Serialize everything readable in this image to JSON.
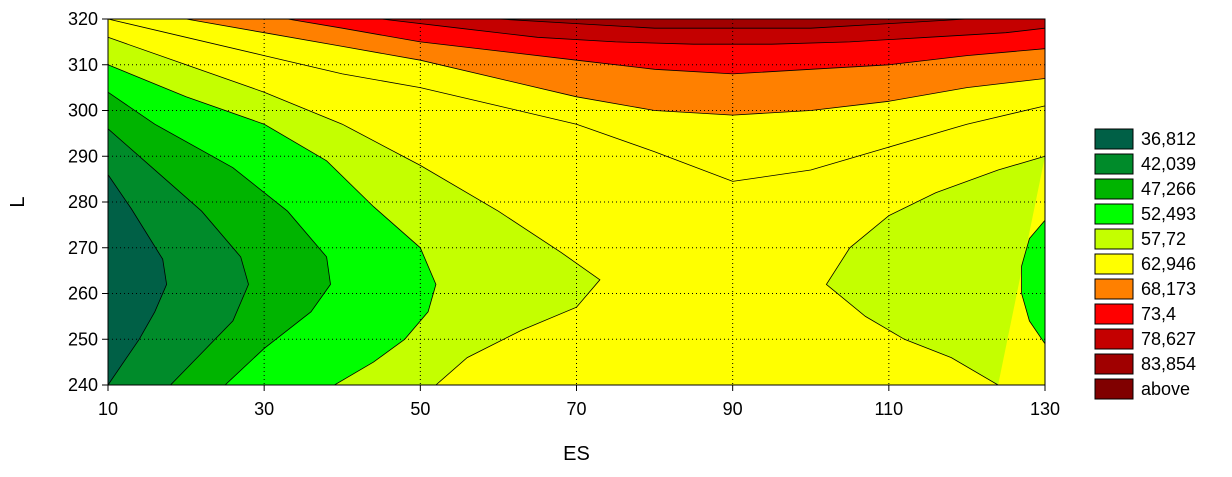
{
  "chart_data": {
    "type": "heatmap",
    "subtype": "contour",
    "xlabel": "ES",
    "ylabel": "L",
    "xlim": [
      10,
      130
    ],
    "ylim": [
      240,
      320
    ],
    "xticks": [
      "10",
      "30",
      "50",
      "70",
      "90",
      "110",
      "130"
    ],
    "yticks": [
      "240",
      "250",
      "260",
      "270",
      "280",
      "290",
      "300",
      "310",
      "320"
    ],
    "grid": true,
    "legend_position": "right",
    "levels": [
      {
        "label": "36,812",
        "value": 36.812,
        "color": "#006046"
      },
      {
        "label": "42,039",
        "value": 42.039,
        "color": "#008b2a"
      },
      {
        "label": "47,266",
        "value": 47.266,
        "color": "#00b400"
      },
      {
        "label": "52,493",
        "value": 52.493,
        "color": "#00ff00"
      },
      {
        "label": "57,72",
        "value": 57.72,
        "color": "#c4ff00"
      },
      {
        "label": "62,946",
        "value": 62.946,
        "color": "#ffff00"
      },
      {
        "label": "68,173",
        "value": 68.173,
        "color": "#ff8000"
      },
      {
        "label": "73,4",
        "value": 73.4,
        "color": "#ff0000"
      },
      {
        "label": "78,627",
        "value": 78.627,
        "color": "#c40000"
      },
      {
        "label": "83,854",
        "value": 83.854,
        "color": "#a00000"
      },
      {
        "label": "above",
        "value": null,
        "color": "#800000"
      }
    ],
    "contours": [
      {
        "level": "36,812",
        "color": "#006046",
        "points": [
          [
            10,
            286
          ],
          [
            13,
            278.5
          ],
          [
            17,
            267.5
          ],
          [
            17.5,
            262
          ],
          [
            16,
            256
          ],
          [
            14,
            250
          ],
          [
            10,
            240
          ]
        ]
      },
      {
        "level": "42,039",
        "color": "#008b2a",
        "points": [
          [
            10,
            296
          ],
          [
            15,
            288.5
          ],
          [
            22,
            278
          ],
          [
            27,
            268
          ],
          [
            28,
            262
          ],
          [
            26,
            254
          ],
          [
            22,
            247
          ],
          [
            18,
            240
          ]
        ]
      },
      {
        "level": "47,266",
        "color": "#00b400",
        "points": [
          [
            10,
            304
          ],
          [
            16,
            297
          ],
          [
            26,
            287.5
          ],
          [
            33,
            278
          ],
          [
            38,
            268
          ],
          [
            38.5,
            262
          ],
          [
            36,
            256
          ],
          [
            30,
            248
          ],
          [
            25,
            240
          ]
        ]
      },
      {
        "level": "52,493",
        "color": "#00ff00",
        "points": [
          [
            10,
            310
          ],
          [
            20,
            303
          ],
          [
            30,
            297
          ],
          [
            38,
            289
          ],
          [
            44,
            279
          ],
          [
            50,
            270
          ],
          [
            52,
            262
          ],
          [
            51,
            256
          ],
          [
            48,
            250
          ],
          [
            44,
            245
          ],
          [
            39,
            240
          ]
        ]
      },
      {
        "level": "57,72",
        "color": "#c4ff00",
        "points": [
          [
            10,
            316
          ],
          [
            20,
            310
          ],
          [
            30,
            304
          ],
          [
            40,
            297
          ],
          [
            50,
            288
          ],
          [
            60,
            278
          ],
          [
            68,
            269
          ],
          [
            73,
            263
          ],
          [
            70,
            257
          ],
          [
            63,
            252
          ],
          [
            56,
            246
          ],
          [
            52,
            240
          ]
        ]
      },
      {
        "level": "57,72",
        "color": "#c4ff00",
        "points": [
          [
            130,
            290
          ],
          [
            124,
            287
          ],
          [
            116,
            282
          ],
          [
            110,
            277
          ],
          [
            105,
            270
          ],
          [
            102,
            262
          ],
          [
            107,
            255
          ],
          [
            112,
            250
          ],
          [
            118,
            246
          ],
          [
            124,
            240
          ]
        ]
      },
      {
        "level": "52,493",
        "color": "#00ff00",
        "points": [
          [
            130,
            276
          ],
          [
            128,
            272
          ],
          [
            127,
            266
          ],
          [
            127,
            260
          ],
          [
            128,
            254
          ],
          [
            130,
            249
          ]
        ]
      },
      {
        "level": "62,946",
        "color": "#ffff00",
        "points": [
          [
            10,
            320
          ],
          [
            20,
            316
          ],
          [
            30,
            312
          ],
          [
            40,
            308
          ],
          [
            50,
            305
          ],
          [
            60,
            301
          ],
          [
            70,
            297
          ],
          [
            80,
            291
          ],
          [
            90,
            284.5
          ],
          [
            100,
            287
          ],
          [
            110,
            292
          ],
          [
            120,
            297
          ],
          [
            130,
            301
          ]
        ]
      },
      {
        "level": "68,173",
        "color": "#ff8000",
        "points": [
          [
            20,
            320
          ],
          [
            30,
            317
          ],
          [
            40,
            314
          ],
          [
            50,
            311
          ],
          [
            60,
            307
          ],
          [
            70,
            303
          ],
          [
            80,
            300
          ],
          [
            90,
            299
          ],
          [
            100,
            300
          ],
          [
            110,
            302
          ],
          [
            120,
            305
          ],
          [
            130,
            307
          ]
        ]
      },
      {
        "level": "73,4",
        "color": "#ff0000",
        "points": [
          [
            33,
            320
          ],
          [
            40,
            318
          ],
          [
            50,
            315
          ],
          [
            60,
            313
          ],
          [
            70,
            311
          ],
          [
            80,
            309
          ],
          [
            90,
            308
          ],
          [
            100,
            309
          ],
          [
            110,
            310
          ],
          [
            120,
            312
          ],
          [
            130,
            313.5
          ]
        ]
      },
      {
        "level": "78,627",
        "color": "#c40000",
        "points": [
          [
            45,
            320
          ],
          [
            55,
            318
          ],
          [
            65,
            316
          ],
          [
            75,
            315
          ],
          [
            85,
            314.5
          ],
          [
            95,
            314.5
          ],
          [
            105,
            315
          ],
          [
            115,
            316
          ],
          [
            125,
            317
          ],
          [
            130,
            318
          ]
        ]
      },
      {
        "level": "83,854",
        "color": "#a00000",
        "points": [
          [
            60,
            320
          ],
          [
            70,
            319
          ],
          [
            80,
            318
          ],
          [
            90,
            318
          ],
          [
            100,
            318
          ],
          [
            110,
            319
          ],
          [
            120,
            320
          ]
        ]
      }
    ]
  }
}
